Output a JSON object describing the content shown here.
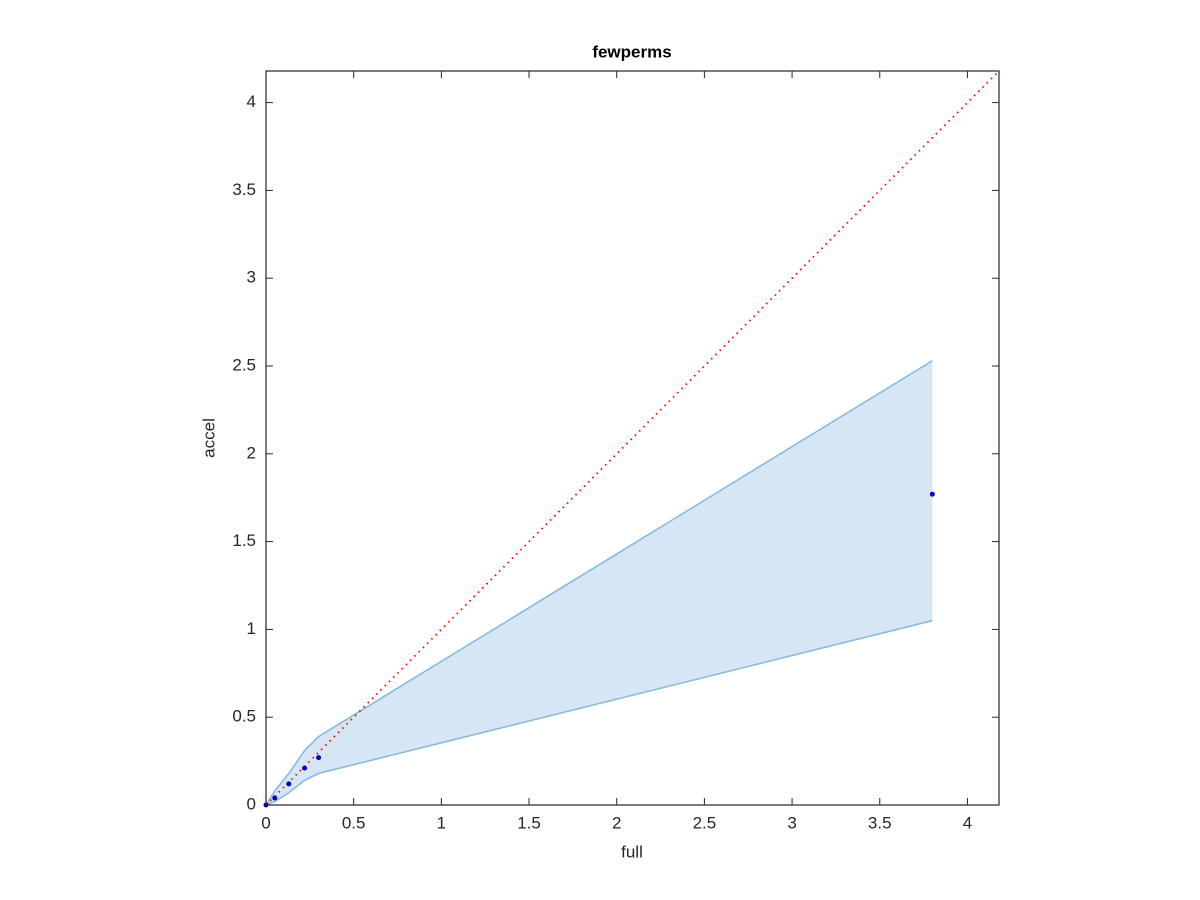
{
  "chart_data": {
    "type": "scatter",
    "title": "fewperms",
    "x_label": "full",
    "y_label": "accel",
    "x": [
      0,
      0.05,
      0.13,
      0.22,
      0.3,
      3.8
    ],
    "series": [
      {
        "color": "#0000cc",
        "values": [
          0,
          0.04,
          0.12,
          0.21,
          0.27,
          1.77
        ]
      }
    ],
    "band": {
      "color": "#d6e6f4",
      "edge_color": "#82b9de",
      "lower": [
        0,
        0.02,
        0.07,
        0.14,
        0.18,
        1.05
      ],
      "upper": [
        0,
        0.08,
        0.18,
        0.31,
        0.39,
        2.53
      ]
    },
    "reference_line": {
      "x": [
        0,
        4.18
      ],
      "values": [
        0,
        4.18
      ],
      "color": "#ff0000"
    },
    "xlim": [
      0,
      4.18
    ],
    "ylim": [
      0,
      4.18
    ],
    "xticks": [
      0,
      0.5,
      1,
      1.5,
      2,
      2.5,
      3,
      3.5,
      4
    ],
    "yticks": [
      0,
      0.5,
      1,
      1.5,
      2,
      2.5,
      3,
      3.5,
      4
    ]
  }
}
